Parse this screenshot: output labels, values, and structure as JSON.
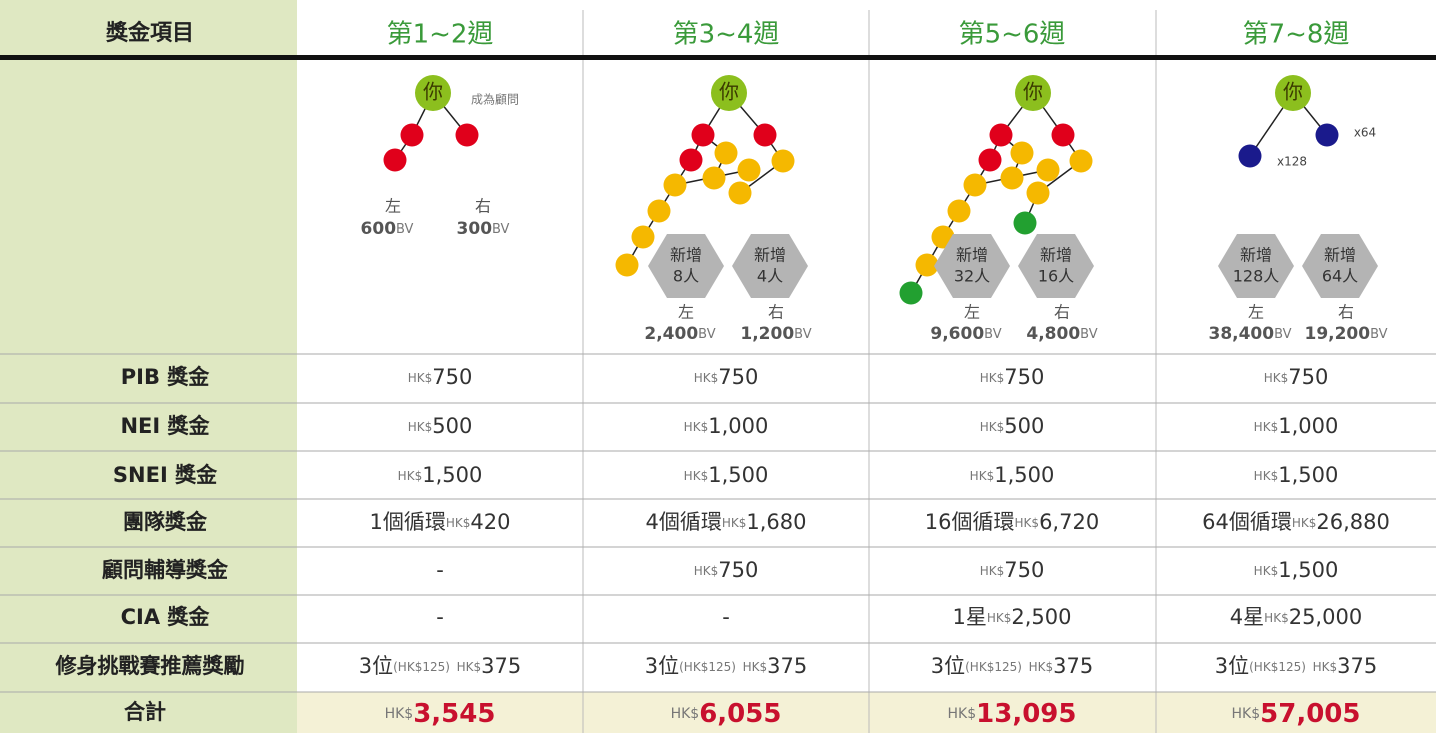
{
  "header": {
    "item": "獎金項目",
    "weeks": [
      "第1~2週",
      "第3~4週",
      "第5~6週",
      "第7~8週"
    ]
  },
  "diagrams": [
    {
      "you": "你",
      "note": "成為顧問",
      "left": "左",
      "right": "右",
      "left_bv": "600BV",
      "right_bv": "300BV"
    },
    {
      "you": "你",
      "hex_left": [
        "新增",
        "8人"
      ],
      "hex_right": [
        "新增",
        "4人"
      ],
      "left": "左",
      "right": "右",
      "left_bv": "2,400BV",
      "right_bv": "1,200BV"
    },
    {
      "you": "你",
      "hex_left": [
        "新增",
        "32人"
      ],
      "hex_right": [
        "新增",
        "16人"
      ],
      "left": "左",
      "right": "右",
      "left_bv": "9,600BV",
      "right_bv": "4,800BV"
    },
    {
      "you": "你",
      "mult_left": "x128",
      "mult_right": "x64",
      "hex_left": [
        "新增",
        "128人"
      ],
      "hex_right": [
        "新增",
        "64人"
      ],
      "left": "左",
      "right": "右",
      "left_bv": "38,400BV",
      "right_bv": "19,200BV"
    }
  ],
  "rows": [
    {
      "label": "PIB 獎金",
      "cells": [
        "HK$750",
        "HK$750",
        "HK$750",
        "HK$750"
      ]
    },
    {
      "label": "NEI 獎金",
      "cells": [
        "HK$500",
        "HK$1,000",
        "HK$500",
        "HK$1,000"
      ]
    },
    {
      "label": "SNEI 獎金",
      "cells": [
        "HK$1,500",
        "HK$1,500",
        "HK$1,500",
        "HK$1,500"
      ]
    },
    {
      "label": "團隊獎金",
      "cells": [
        "1個循環HK$420",
        "4個循環HK$1,680",
        "16個循環HK$6,720",
        "64個循環HK$26,880"
      ]
    },
    {
      "label": "顧問輔導獎金",
      "cells": [
        "-",
        "HK$750",
        "HK$750",
        "HK$1,500"
      ]
    },
    {
      "label": "CIA 獎金",
      "cells": [
        "-",
        "-",
        "1星HK$2,500",
        "4星HK$25,000"
      ]
    },
    {
      "label": "修身挑戰賽推薦獎勵",
      "cells": [
        "3位(HK$125) HK$375",
        "3位(HK$125) HK$375",
        "3位(HK$125) HK$375",
        "3位(HK$125) HK$375"
      ]
    }
  ],
  "total": {
    "label": "合計",
    "cells": [
      "HK$3,545",
      "HK$6,055",
      "HK$13,095",
      "HK$57,005"
    ]
  }
}
